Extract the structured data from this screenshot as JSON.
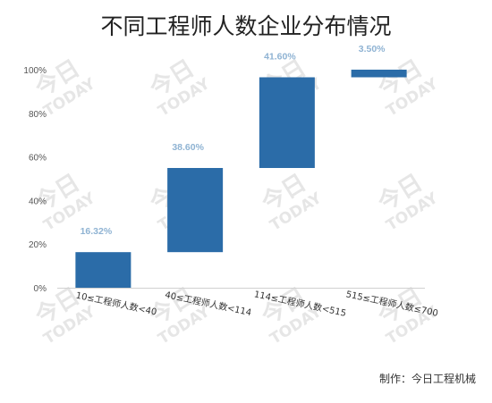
{
  "chart_data": {
    "type": "bar",
    "style": "waterfall",
    "title": "不同工程师人数企业分布情况",
    "categories": [
      "10≤工程师人数<40",
      "40≤工程师人数<114",
      "114≤工程师人数<515",
      "515≤工程师人数≤700"
    ],
    "values": [
      16.32,
      38.6,
      41.6,
      3.5
    ],
    "data_labels": [
      "16.32%",
      "38.60%",
      "41.60%",
      "3.50%"
    ],
    "ylim": [
      0,
      100
    ],
    "yticks": [
      0,
      20,
      40,
      60,
      80,
      100
    ],
    "ytick_labels": [
      "0%",
      "20%",
      "40%",
      "60%",
      "80%",
      "100%"
    ],
    "xlabel": "",
    "ylabel": "",
    "bar_color": "#2b6ca8",
    "label_color": "#8fb3d3",
    "grid": false,
    "legend": "none"
  },
  "watermark": {
    "text": "今日 TODAY",
    "color": "#e6e6e6"
  },
  "source_text": "制作：今日工程机械"
}
